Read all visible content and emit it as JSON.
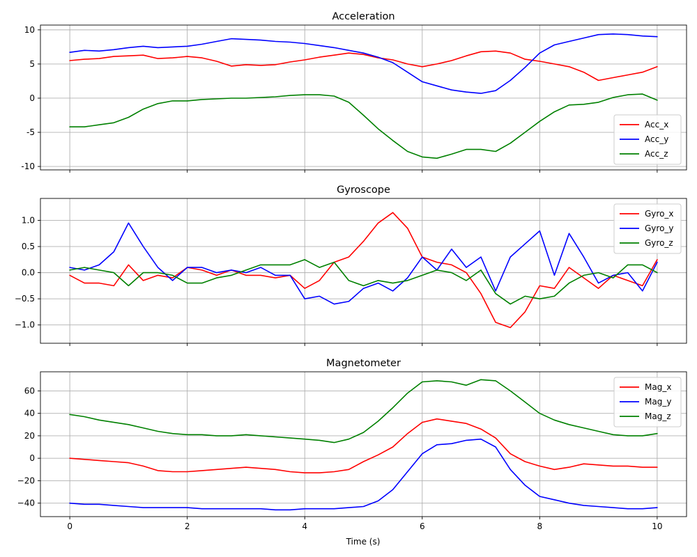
{
  "figure": {
    "xlabel": "Time (s)"
  },
  "chart_data": [
    {
      "type": "line",
      "title": "Acceleration",
      "xlabel": "",
      "ylabel": "",
      "xlim": [
        -0.5,
        10.5
      ],
      "ylim": [
        -10.5,
        10.7
      ],
      "xticks": [
        0,
        2,
        4,
        6,
        8,
        10
      ],
      "yticks": [
        -10,
        -5,
        0,
        5,
        10
      ],
      "grid": true,
      "legend_position": "lower-right",
      "series": [
        {
          "name": "Acc_x",
          "color": "#ff0000",
          "x": [
            0,
            0.25,
            0.5,
            0.75,
            1,
            1.25,
            1.5,
            1.75,
            2,
            2.25,
            2.5,
            2.75,
            3,
            3.25,
            3.5,
            3.75,
            4,
            4.25,
            4.5,
            4.75,
            5,
            5.25,
            5.5,
            5.75,
            6,
            6.25,
            6.5,
            6.75,
            7,
            7.25,
            7.5,
            7.75,
            8,
            8.25,
            8.5,
            8.75,
            9,
            9.25,
            9.5,
            9.75,
            10
          ],
          "y": [
            5.5,
            5.7,
            5.8,
            6.1,
            6.2,
            6.3,
            5.8,
            5.9,
            6.1,
            5.9,
            5.4,
            4.7,
            4.9,
            4.8,
            4.9,
            5.3,
            5.6,
            6.0,
            6.3,
            6.6,
            6.4,
            5.9,
            5.6,
            5.0,
            4.6,
            5.0,
            5.5,
            6.2,
            6.8,
            6.9,
            6.6,
            5.7,
            5.4,
            5.0,
            4.6,
            3.8,
            2.6,
            3.0,
            3.4,
            3.8,
            4.6
          ]
        },
        {
          "name": "Acc_y",
          "color": "#0000ff",
          "x": [
            0,
            0.25,
            0.5,
            0.75,
            1,
            1.25,
            1.5,
            1.75,
            2,
            2.25,
            2.5,
            2.75,
            3,
            3.25,
            3.5,
            3.75,
            4,
            4.25,
            4.5,
            4.75,
            5,
            5.25,
            5.5,
            5.75,
            6,
            6.25,
            6.5,
            6.75,
            7,
            7.25,
            7.5,
            7.75,
            8,
            8.25,
            8.5,
            8.75,
            9,
            9.25,
            9.5,
            9.75,
            10
          ],
          "y": [
            6.7,
            7.0,
            6.9,
            7.1,
            7.4,
            7.6,
            7.4,
            7.5,
            7.6,
            7.9,
            8.3,
            8.7,
            8.6,
            8.5,
            8.3,
            8.2,
            8.0,
            7.7,
            7.4,
            7.0,
            6.6,
            6.0,
            5.2,
            3.8,
            2.4,
            1.8,
            1.2,
            0.9,
            0.7,
            1.1,
            2.6,
            4.5,
            6.6,
            7.8,
            8.3,
            8.8,
            9.3,
            9.4,
            9.3,
            9.1,
            9.0
          ]
        },
        {
          "name": "Acc_z",
          "color": "#008000",
          "x": [
            0,
            0.25,
            0.5,
            0.75,
            1,
            1.25,
            1.5,
            1.75,
            2,
            2.25,
            2.5,
            2.75,
            3,
            3.25,
            3.5,
            3.75,
            4,
            4.25,
            4.5,
            4.75,
            5,
            5.25,
            5.5,
            5.75,
            6,
            6.25,
            6.5,
            6.75,
            7,
            7.25,
            7.5,
            7.75,
            8,
            8.25,
            8.5,
            8.75,
            9,
            9.25,
            9.5,
            9.75,
            10
          ],
          "y": [
            -4.2,
            -4.2,
            -3.9,
            -3.6,
            -2.8,
            -1.6,
            -0.8,
            -0.4,
            -0.4,
            -0.2,
            -0.1,
            0.0,
            0.0,
            0.1,
            0.2,
            0.4,
            0.5,
            0.5,
            0.3,
            -0.6,
            -2.5,
            -4.5,
            -6.2,
            -7.8,
            -8.6,
            -8.8,
            -8.2,
            -7.5,
            -7.5,
            -7.8,
            -6.6,
            -5.0,
            -3.4,
            -2.0,
            -1.0,
            -0.9,
            -0.6,
            0.1,
            0.5,
            0.6,
            -0.3
          ]
        }
      ]
    },
    {
      "type": "line",
      "title": "Gyroscope",
      "xlabel": "",
      "ylabel": "",
      "xlim": [
        -0.5,
        10.5
      ],
      "ylim": [
        -1.35,
        1.42
      ],
      "xticks": [
        0,
        2,
        4,
        6,
        8,
        10
      ],
      "yticks": [
        -1.0,
        -0.5,
        0.0,
        0.5,
        1.0
      ],
      "ytick_labels": [
        "−1.0",
        "−0.5",
        "0.0",
        "0.5",
        "1.0"
      ],
      "grid": true,
      "legend_position": "upper-right",
      "series": [
        {
          "name": "Gyro_x",
          "color": "#ff0000",
          "x": [
            0,
            0.25,
            0.5,
            0.75,
            1,
            1.25,
            1.5,
            1.75,
            2,
            2.25,
            2.5,
            2.75,
            3,
            3.25,
            3.5,
            3.75,
            4,
            4.25,
            4.5,
            4.75,
            5,
            5.25,
            5.5,
            5.75,
            6,
            6.25,
            6.5,
            6.75,
            7,
            7.25,
            7.5,
            7.75,
            8,
            8.25,
            8.5,
            8.75,
            9,
            9.25,
            9.5,
            9.75,
            10
          ],
          "y": [
            -0.05,
            -0.2,
            -0.2,
            -0.25,
            0.15,
            -0.15,
            -0.05,
            -0.1,
            0.1,
            0.05,
            -0.05,
            0.05,
            -0.05,
            -0.05,
            -0.1,
            -0.05,
            -0.3,
            -0.15,
            0.2,
            0.3,
            0.6,
            0.95,
            1.15,
            0.85,
            0.3,
            0.2,
            0.15,
            0.0,
            -0.4,
            -0.95,
            -1.05,
            -0.75,
            -0.25,
            -0.3,
            0.1,
            -0.1,
            -0.3,
            -0.05,
            -0.15,
            -0.25,
            0.25
          ]
        },
        {
          "name": "Gyro_y",
          "color": "#0000ff",
          "x": [
            0,
            0.25,
            0.5,
            0.75,
            1,
            1.25,
            1.5,
            1.75,
            2,
            2.25,
            2.5,
            2.75,
            3,
            3.25,
            3.5,
            3.75,
            4,
            4.25,
            4.5,
            4.75,
            5,
            5.25,
            5.5,
            5.75,
            6,
            6.25,
            6.5,
            6.75,
            7,
            7.25,
            7.5,
            7.75,
            8,
            8.25,
            8.5,
            8.75,
            9,
            9.25,
            9.5,
            9.75,
            10
          ],
          "y": [
            0.1,
            0.05,
            0.15,
            0.4,
            0.95,
            0.5,
            0.1,
            -0.15,
            0.1,
            0.1,
            0.0,
            0.05,
            0.0,
            0.1,
            -0.05,
            -0.05,
            -0.5,
            -0.45,
            -0.6,
            -0.55,
            -0.3,
            -0.2,
            -0.35,
            -0.1,
            0.3,
            0.05,
            0.45,
            0.1,
            0.3,
            -0.35,
            0.3,
            0.55,
            0.8,
            -0.05,
            0.75,
            0.3,
            -0.2,
            -0.05,
            0.0,
            -0.35,
            0.2
          ]
        },
        {
          "name": "Gyro_z",
          "color": "#008000",
          "x": [
            0,
            0.25,
            0.5,
            0.75,
            1,
            1.25,
            1.5,
            1.75,
            2,
            2.25,
            2.5,
            2.75,
            3,
            3.25,
            3.5,
            3.75,
            4,
            4.25,
            4.5,
            4.75,
            5,
            5.25,
            5.5,
            5.75,
            6,
            6.25,
            6.5,
            6.75,
            7,
            7.25,
            7.5,
            7.75,
            8,
            8.25,
            8.5,
            8.75,
            9,
            9.25,
            9.5,
            9.75,
            10
          ],
          "y": [
            0.05,
            0.1,
            0.05,
            0.0,
            -0.25,
            0.0,
            0.0,
            -0.05,
            -0.2,
            -0.2,
            -0.1,
            -0.05,
            0.05,
            0.15,
            0.15,
            0.15,
            0.25,
            0.1,
            0.2,
            -0.15,
            -0.25,
            -0.15,
            -0.2,
            -0.15,
            -0.05,
            0.05,
            0.0,
            -0.15,
            0.05,
            -0.4,
            -0.6,
            -0.45,
            -0.5,
            -0.45,
            -0.2,
            -0.05,
            0.0,
            -0.1,
            0.15,
            0.15,
            0.0
          ]
        }
      ]
    },
    {
      "type": "line",
      "title": "Magnetometer",
      "xlabel": "Time (s)",
      "ylabel": "",
      "xlim": [
        -0.5,
        10.5
      ],
      "ylim": [
        -52,
        77
      ],
      "xticks": [
        0,
        2,
        4,
        6,
        8,
        10
      ],
      "yticks": [
        -40,
        -20,
        0,
        20,
        40,
        60
      ],
      "ytick_labels": [
        "−40",
        "−20",
        "0",
        "20",
        "40",
        "60"
      ],
      "grid": true,
      "legend_position": "upper-right",
      "series": [
        {
          "name": "Mag_x",
          "color": "#ff0000",
          "x": [
            0,
            0.25,
            0.5,
            0.75,
            1,
            1.25,
            1.5,
            1.75,
            2,
            2.25,
            2.5,
            2.75,
            3,
            3.25,
            3.5,
            3.75,
            4,
            4.25,
            4.5,
            4.75,
            5,
            5.25,
            5.5,
            5.75,
            6,
            6.25,
            6.5,
            6.75,
            7,
            7.25,
            7.5,
            7.75,
            8,
            8.25,
            8.5,
            8.75,
            9,
            9.25,
            9.5,
            9.75,
            10
          ],
          "y": [
            0,
            -1,
            -2,
            -3,
            -4,
            -7,
            -11,
            -12,
            -12,
            -11,
            -10,
            -9,
            -8,
            -9,
            -10,
            -12,
            -13,
            -13,
            -12,
            -10,
            -3,
            3,
            10,
            22,
            32,
            35,
            33,
            31,
            26,
            18,
            4,
            -3,
            -7,
            -10,
            -8,
            -5,
            -6,
            -7,
            -7,
            -8,
            -8
          ]
        },
        {
          "name": "Mag_y",
          "color": "#0000ff",
          "x": [
            0,
            0.25,
            0.5,
            0.75,
            1,
            1.25,
            1.5,
            1.75,
            2,
            2.25,
            2.5,
            2.75,
            3,
            3.25,
            3.5,
            3.75,
            4,
            4.25,
            4.5,
            4.75,
            5,
            5.25,
            5.5,
            5.75,
            6,
            6.25,
            6.5,
            6.75,
            7,
            7.25,
            7.5,
            7.75,
            8,
            8.25,
            8.5,
            8.75,
            9,
            9.25,
            9.5,
            9.75,
            10
          ],
          "y": [
            -40,
            -41,
            -41,
            -42,
            -43,
            -44,
            -44,
            -44,
            -44,
            -45,
            -45,
            -45,
            -45,
            -45,
            -46,
            -46,
            -45,
            -45,
            -45,
            -44,
            -43,
            -38,
            -28,
            -12,
            4,
            12,
            13,
            16,
            17,
            10,
            -10,
            -24,
            -34,
            -37,
            -40,
            -42,
            -43,
            -44,
            -45,
            -45,
            -44
          ]
        },
        {
          "name": "Mag_z",
          "color": "#008000",
          "x": [
            0,
            0.25,
            0.5,
            0.75,
            1,
            1.25,
            1.5,
            1.75,
            2,
            2.25,
            2.5,
            2.75,
            3,
            3.25,
            3.5,
            3.75,
            4,
            4.25,
            4.5,
            4.75,
            5,
            5.25,
            5.5,
            5.75,
            6,
            6.25,
            6.5,
            6.75,
            7,
            7.25,
            7.5,
            7.75,
            8,
            8.25,
            8.5,
            8.75,
            9,
            9.25,
            9.5,
            9.75,
            10
          ],
          "y": [
            39,
            37,
            34,
            32,
            30,
            27,
            24,
            22,
            21,
            21,
            20,
            20,
            21,
            20,
            19,
            18,
            17,
            16,
            14,
            17,
            23,
            33,
            45,
            58,
            68,
            69,
            68,
            65,
            70,
            69,
            60,
            50,
            40,
            34,
            30,
            27,
            24,
            21,
            20,
            20,
            22
          ]
        }
      ]
    }
  ]
}
